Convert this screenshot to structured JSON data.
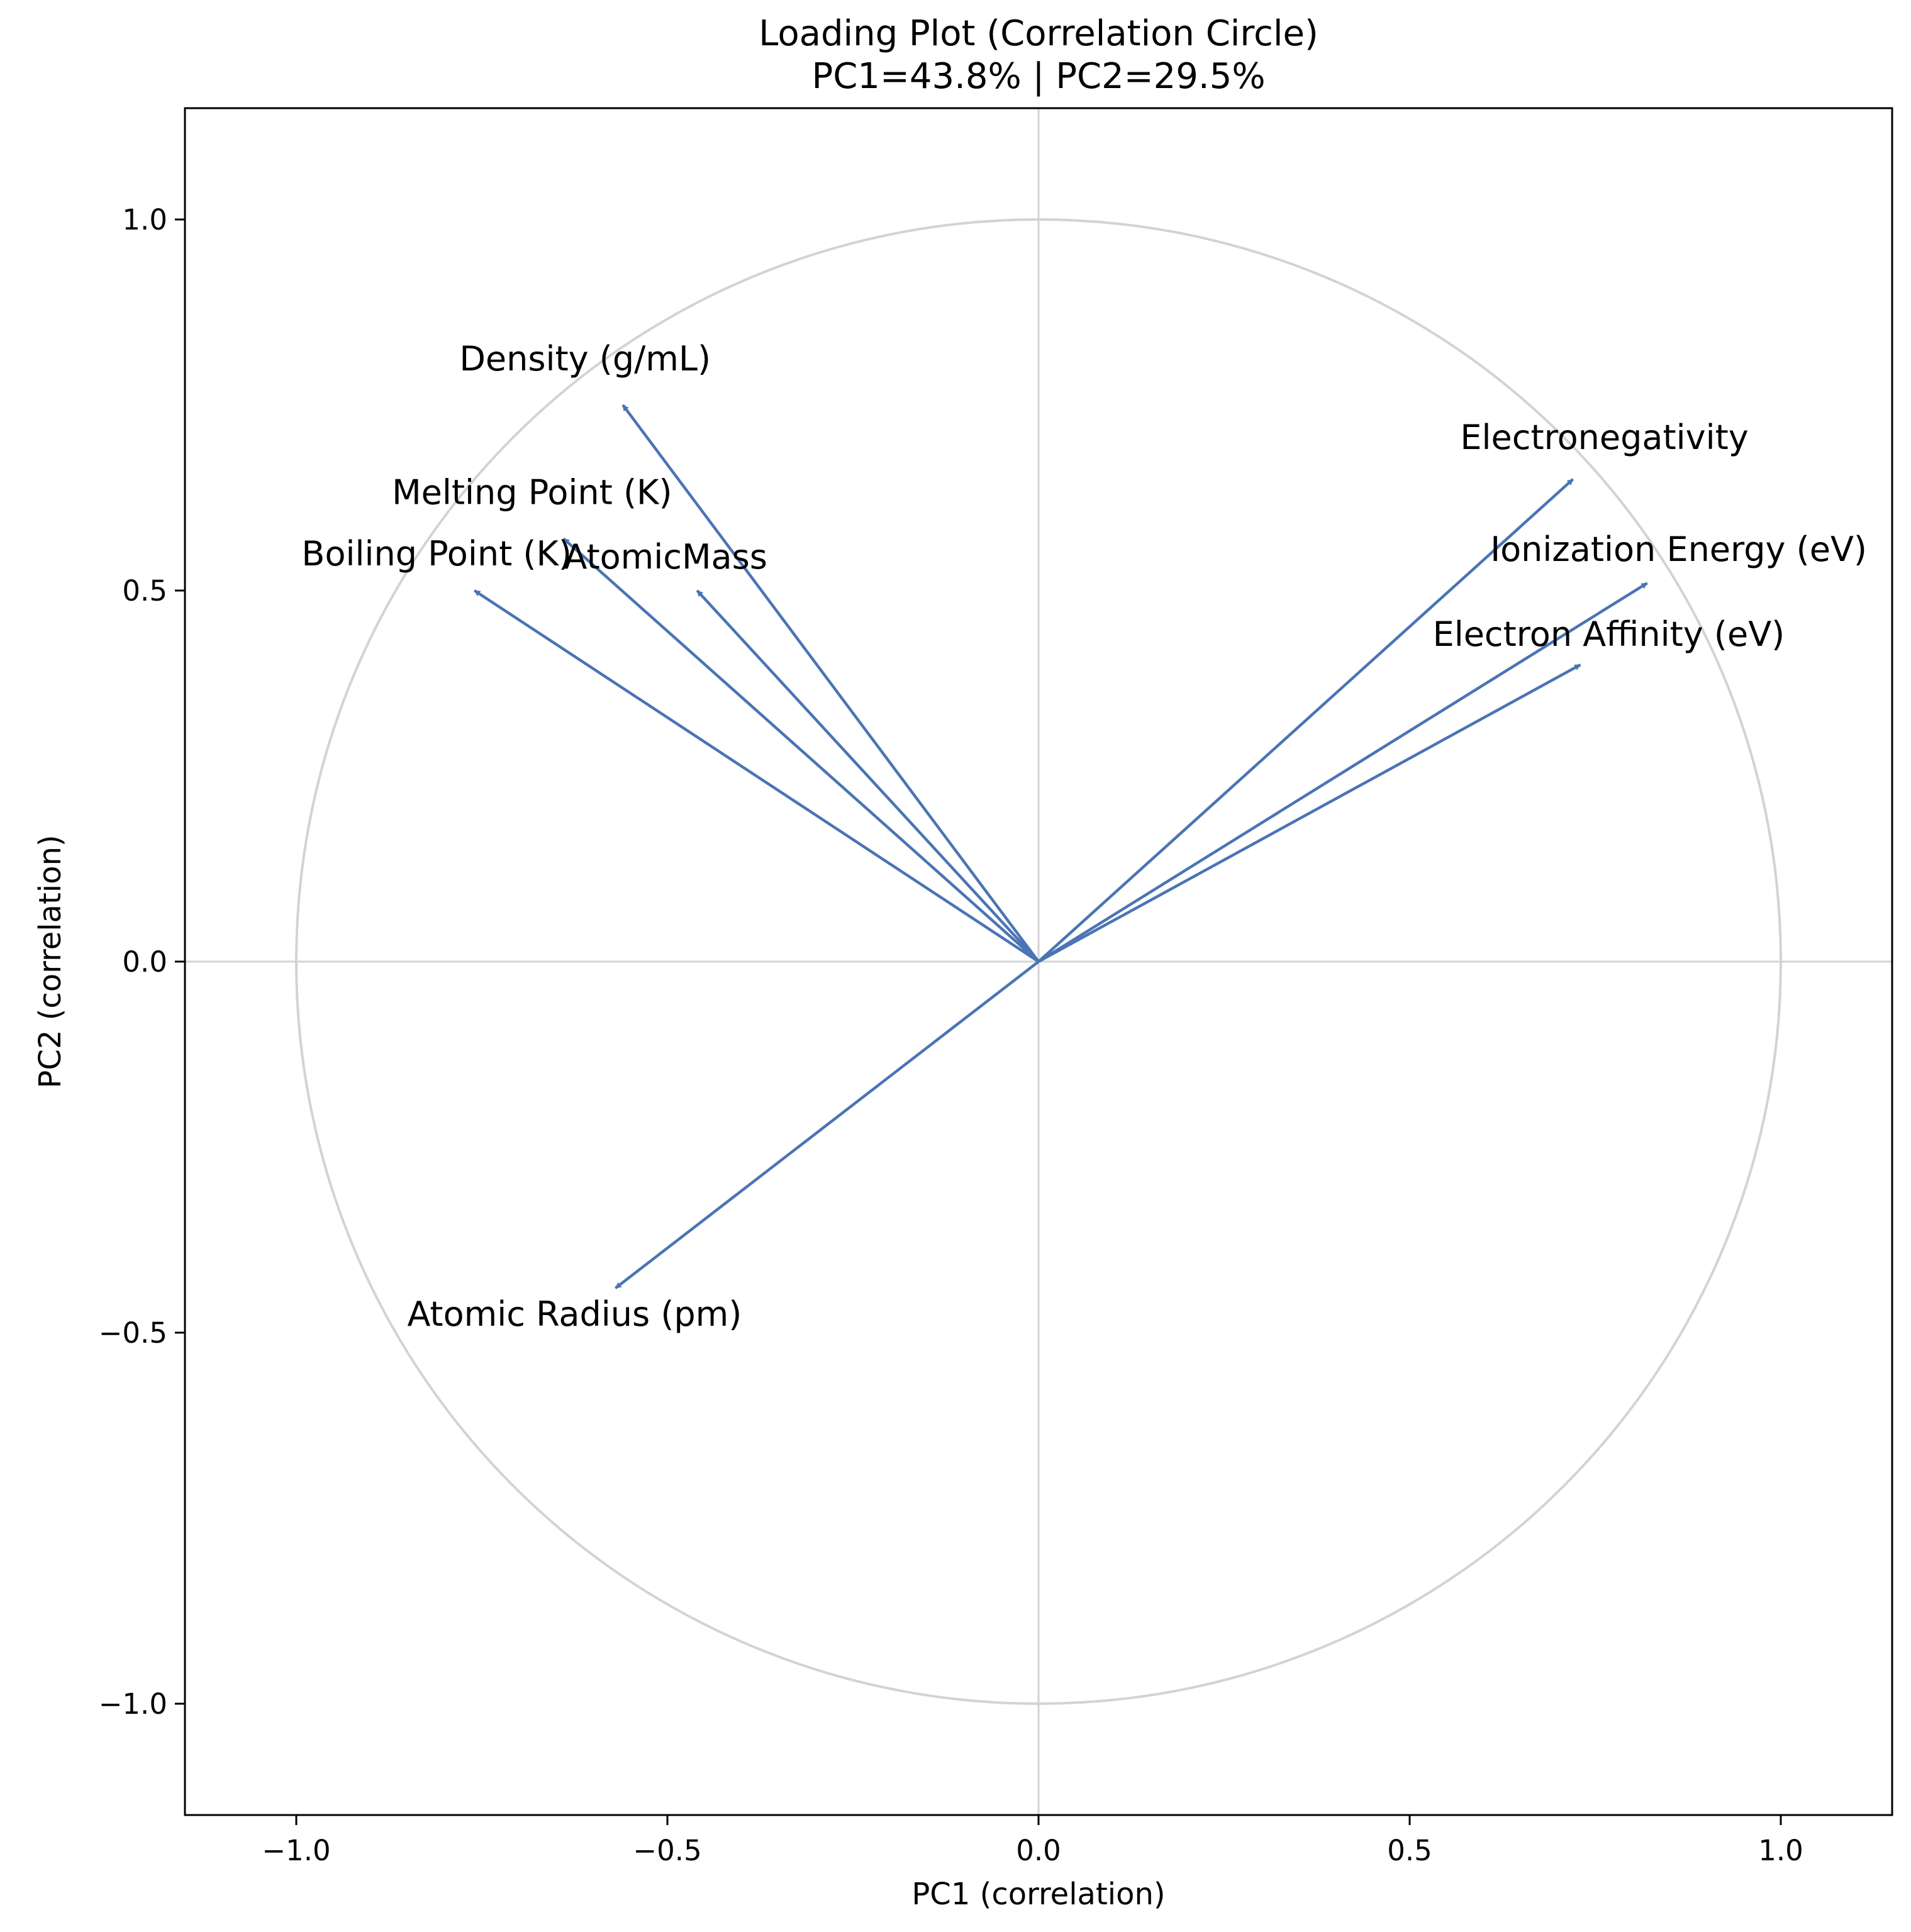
{
  "chart_data": {
    "type": "biplot-loadings",
    "title": "Loading Plot (Correlation Circle)",
    "subtitle": "PC1=43.8%  |  PC2=29.5%",
    "xlabel": "PC1 (correlation)",
    "ylabel": "PC2 (correlation)",
    "xlim": [
      -1.15,
      1.15
    ],
    "ylim": [
      -1.15,
      1.15
    ],
    "xticks": [
      -1.0,
      -0.5,
      0.0,
      0.5,
      1.0
    ],
    "yticks": [
      -1.0,
      -0.5,
      0.0,
      0.5,
      1.0
    ],
    "xtick_labels": [
      "−1.0",
      "−0.5",
      "0.0",
      "0.5",
      "1.0"
    ],
    "ytick_labels": [
      "−1.0",
      "−0.5",
      "0.0",
      "0.5",
      "1.0"
    ],
    "unit_circle": true,
    "reference_lines": [
      0
    ],
    "colors": {
      "vector": "#4a74b4",
      "circle": "#d3d3d3",
      "axis": "#000000"
    },
    "vectors": [
      {
        "name": "Density (g/mL)",
        "x": -0.56,
        "y": 0.75
      },
      {
        "name": "Melting Point (K)",
        "x": -0.64,
        "y": 0.57
      },
      {
        "name": "Boiling Point (K)",
        "x": -0.76,
        "y": 0.5
      },
      {
        "name": "AtomicMass",
        "x": -0.46,
        "y": 0.5
      },
      {
        "name": "Electronegativity",
        "x": 0.72,
        "y": 0.65
      },
      {
        "name": "Ionization Energy (eV)",
        "x": 0.82,
        "y": 0.51
      },
      {
        "name": "Electron Affinity (eV)",
        "x": 0.73,
        "y": 0.4
      },
      {
        "name": "Atomic Radius (pm)",
        "x": -0.57,
        "y": -0.44
      }
    ]
  }
}
